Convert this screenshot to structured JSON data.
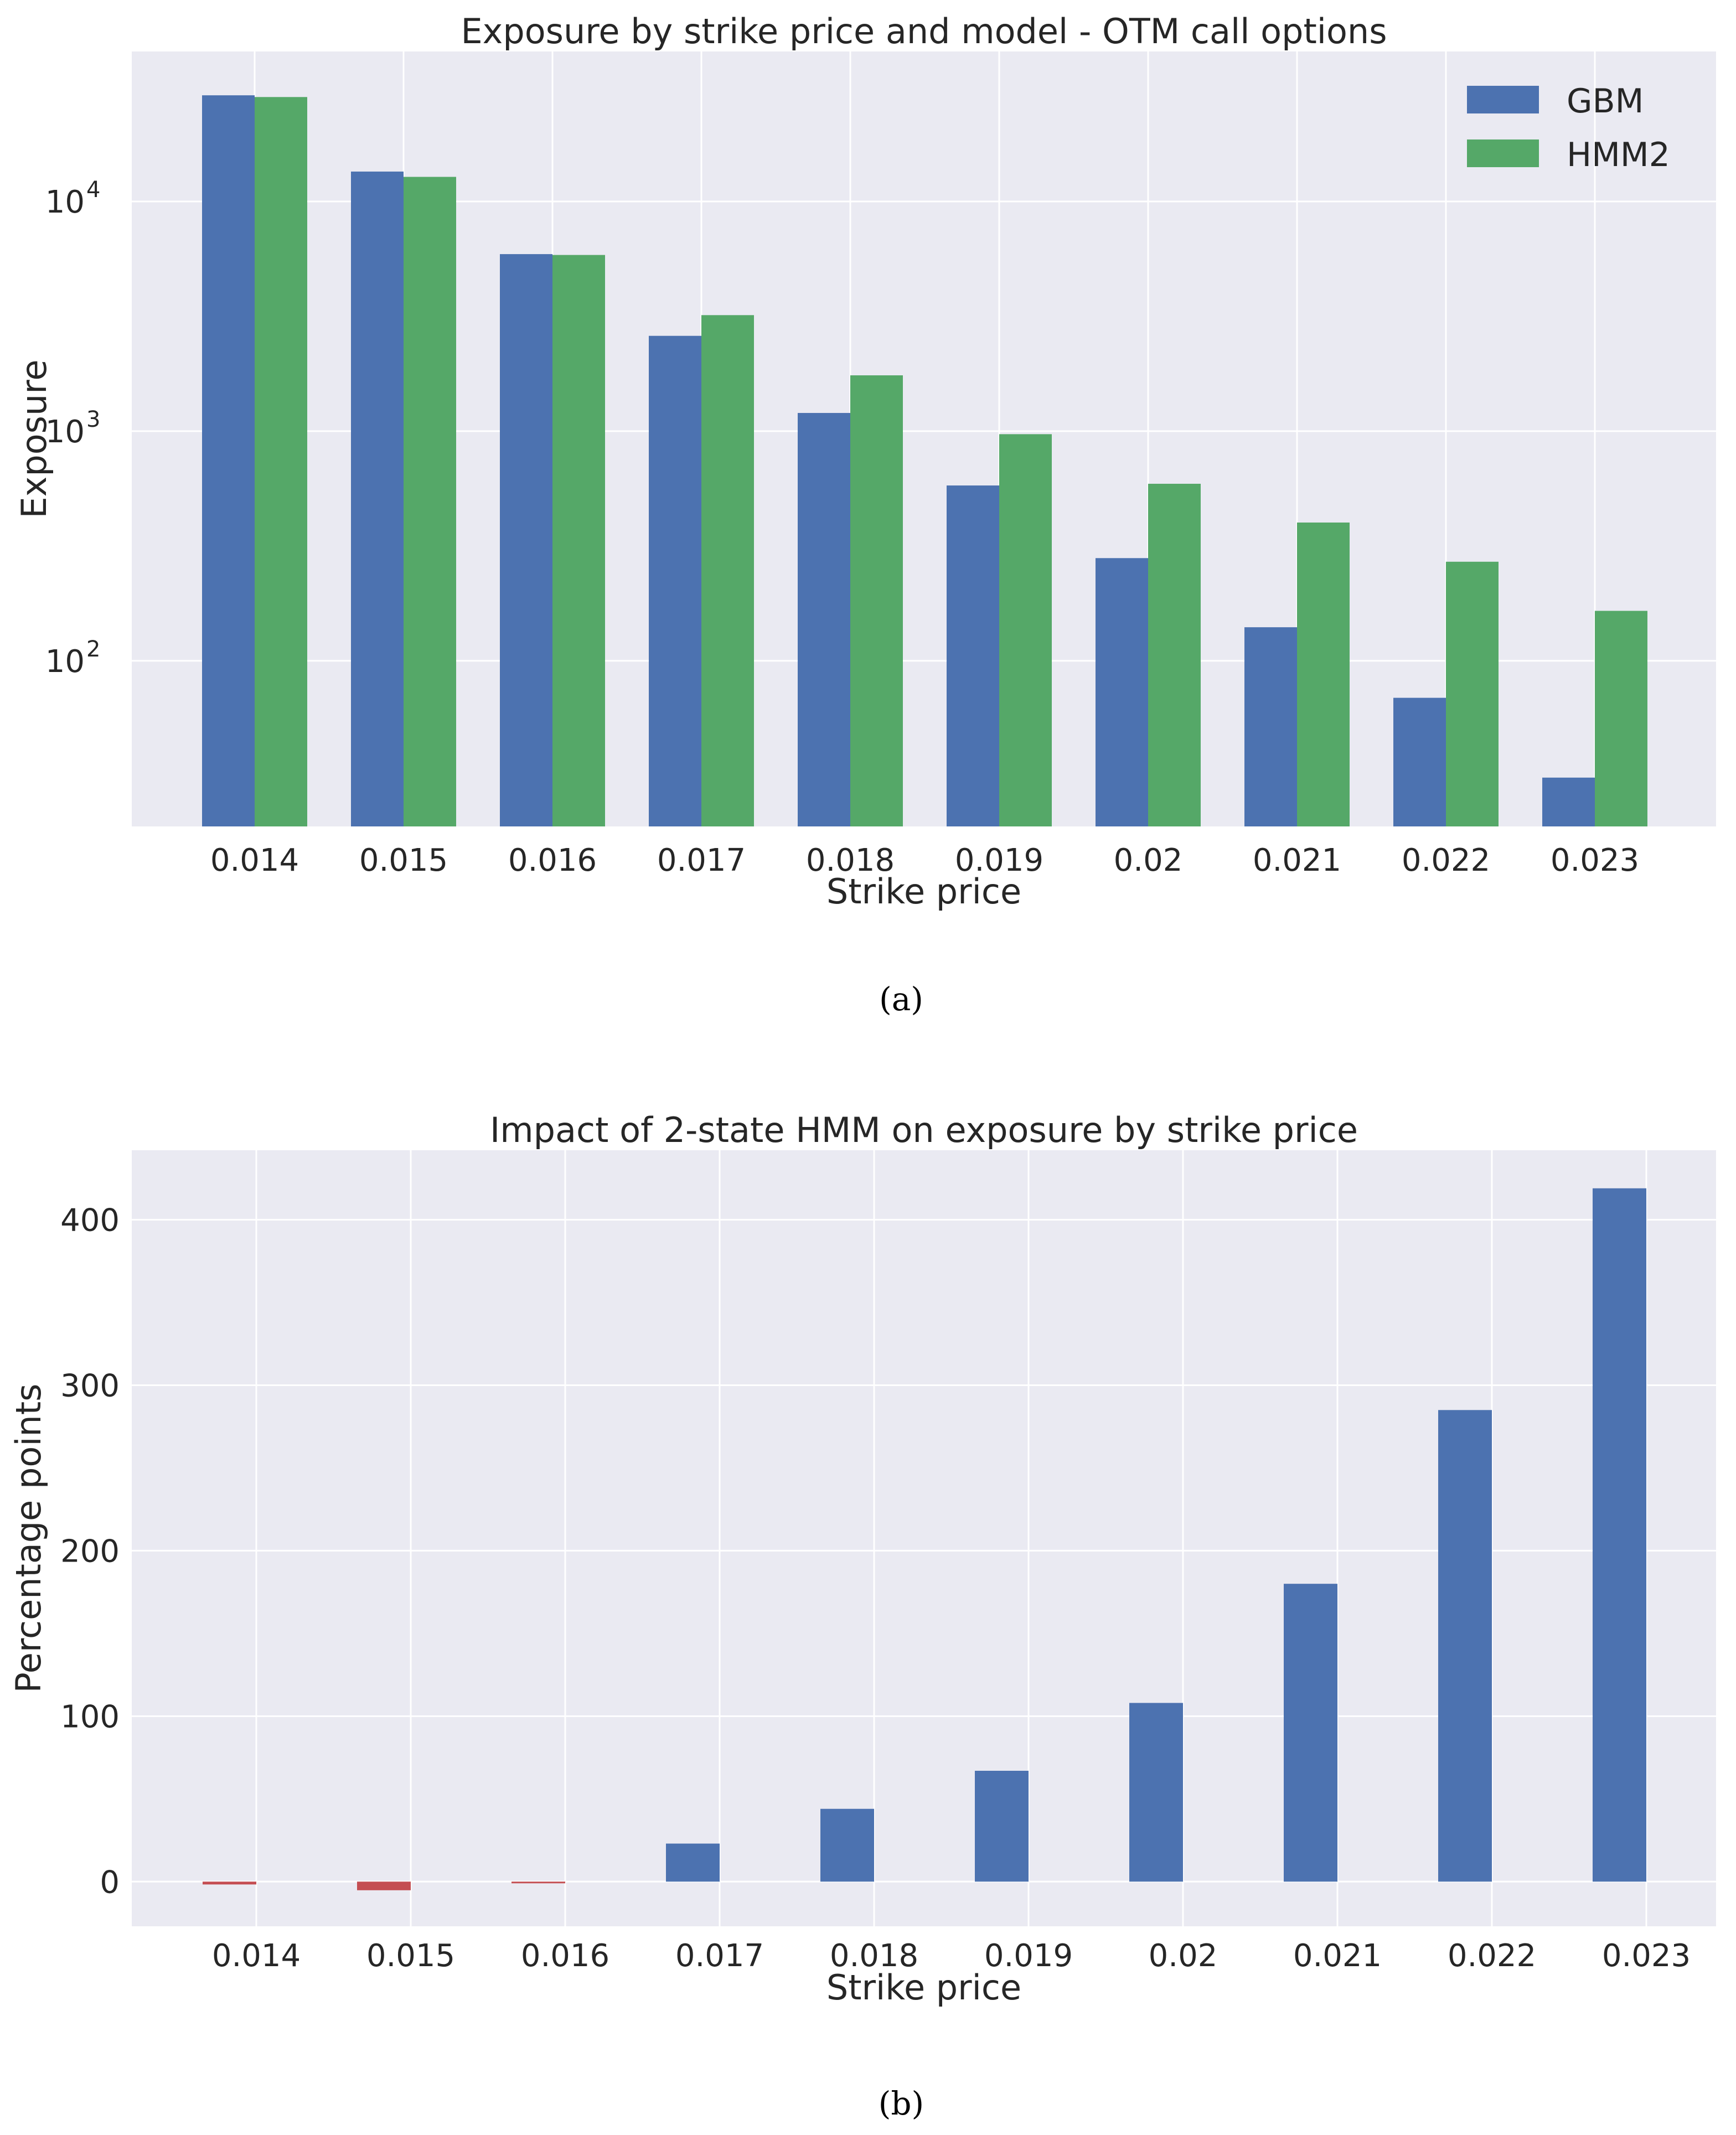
{
  "figure": {
    "panel_a_caption": "(a)",
    "panel_b_caption": "(b)",
    "colors": {
      "GBM": "#4c72b0",
      "HMM2": "#55a868",
      "negative": "#c44e52",
      "background": "#eaeaf2",
      "grid": "#ffffff"
    }
  },
  "chart_data": [
    {
      "type": "bar",
      "scale": "log",
      "title": "Exposure by strike price and model - OTM call options",
      "xlabel": "Strike price",
      "ylabel": "Exposure",
      "categories": [
        "0.014",
        "0.015",
        "0.016",
        "0.017",
        "0.018",
        "0.019",
        "0.02",
        "0.021",
        "0.022",
        "0.023"
      ],
      "series": [
        {
          "name": "GBM",
          "values": [
            29000,
            13500,
            5900,
            2600,
            1200,
            580,
            280,
            140,
            69,
            31
          ]
        },
        {
          "name": "HMM2",
          "values": [
            28500,
            12800,
            5850,
            3200,
            1750,
            970,
            590,
            400,
            270,
            165
          ]
        }
      ],
      "yticks": [
        100,
        1000,
        10000
      ],
      "ytick_labels": [
        [
          "10",
          "2"
        ],
        [
          "10",
          "3"
        ],
        [
          "10",
          "4"
        ]
      ],
      "ylim": [
        19,
        45000
      ],
      "legend": "top-right"
    },
    {
      "type": "bar",
      "title": "Impact of 2-state HMM on exposure by strike price",
      "xlabel": "Strike price",
      "ylabel": "Percentage points",
      "categories": [
        "0.014",
        "0.015",
        "0.016",
        "0.017",
        "0.018",
        "0.019",
        "0.02",
        "0.021",
        "0.022",
        "0.023"
      ],
      "values": [
        -1.7,
        -5.2,
        -0.8,
        23,
        44,
        67,
        108,
        180,
        285,
        419
      ],
      "yticks": [
        0,
        100,
        200,
        300,
        400
      ],
      "ylim": [
        -27,
        442
      ]
    }
  ]
}
